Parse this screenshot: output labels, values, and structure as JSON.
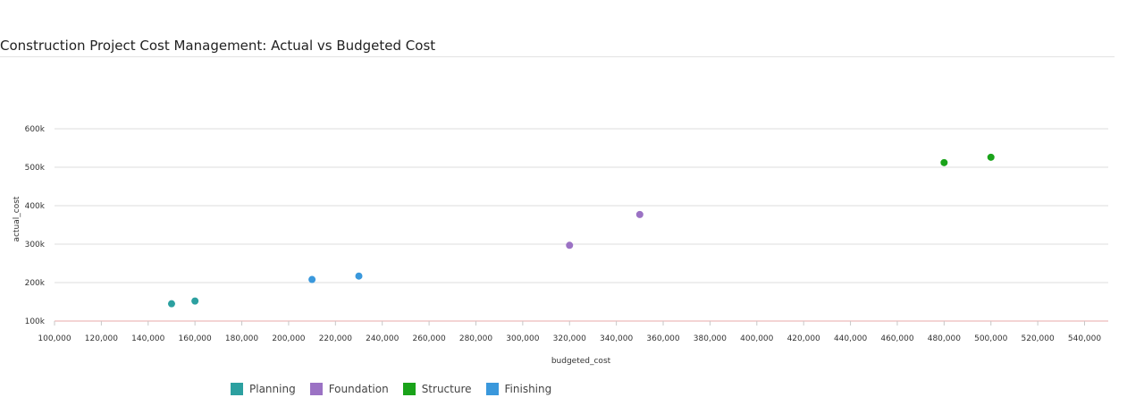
{
  "title": "Construction Project Cost Management: Actual vs Budgeted Cost",
  "chart_data": {
    "type": "scatter",
    "xlabel": "budgeted_cost",
    "ylabel": "actual_cost",
    "xlim": [
      100000,
      550000
    ],
    "ylim": [
      100000,
      600000
    ],
    "x_ticks": [
      "100,000",
      "120,000",
      "140,000",
      "160,000",
      "180,000",
      "200,000",
      "220,000",
      "240,000",
      "260,000",
      "280,000",
      "300,000",
      "320,000",
      "340,000",
      "360,000",
      "380,000",
      "400,000",
      "420,000",
      "440,000",
      "460,000",
      "480,000",
      "500,000",
      "520,000",
      "540,000"
    ],
    "y_ticks": [
      "100k",
      "200k",
      "300k",
      "400k",
      "500k",
      "600k"
    ],
    "grid": "horizontal",
    "legend_position": "bottom",
    "series": [
      {
        "name": "Planning",
        "color": "#2ca0a0",
        "points": [
          [
            150000,
            145000
          ],
          [
            160000,
            152000
          ]
        ]
      },
      {
        "name": "Foundation",
        "color": "#9b72c4",
        "points": [
          [
            320000,
            297000
          ],
          [
            350000,
            377000
          ]
        ]
      },
      {
        "name": "Structure",
        "color": "#1aa31a",
        "points": [
          [
            480000,
            512000
          ],
          [
            500000,
            526000
          ]
        ]
      },
      {
        "name": "Finishing",
        "color": "#3a98dc",
        "points": [
          [
            210000,
            208000
          ],
          [
            230000,
            217000
          ]
        ]
      }
    ]
  }
}
